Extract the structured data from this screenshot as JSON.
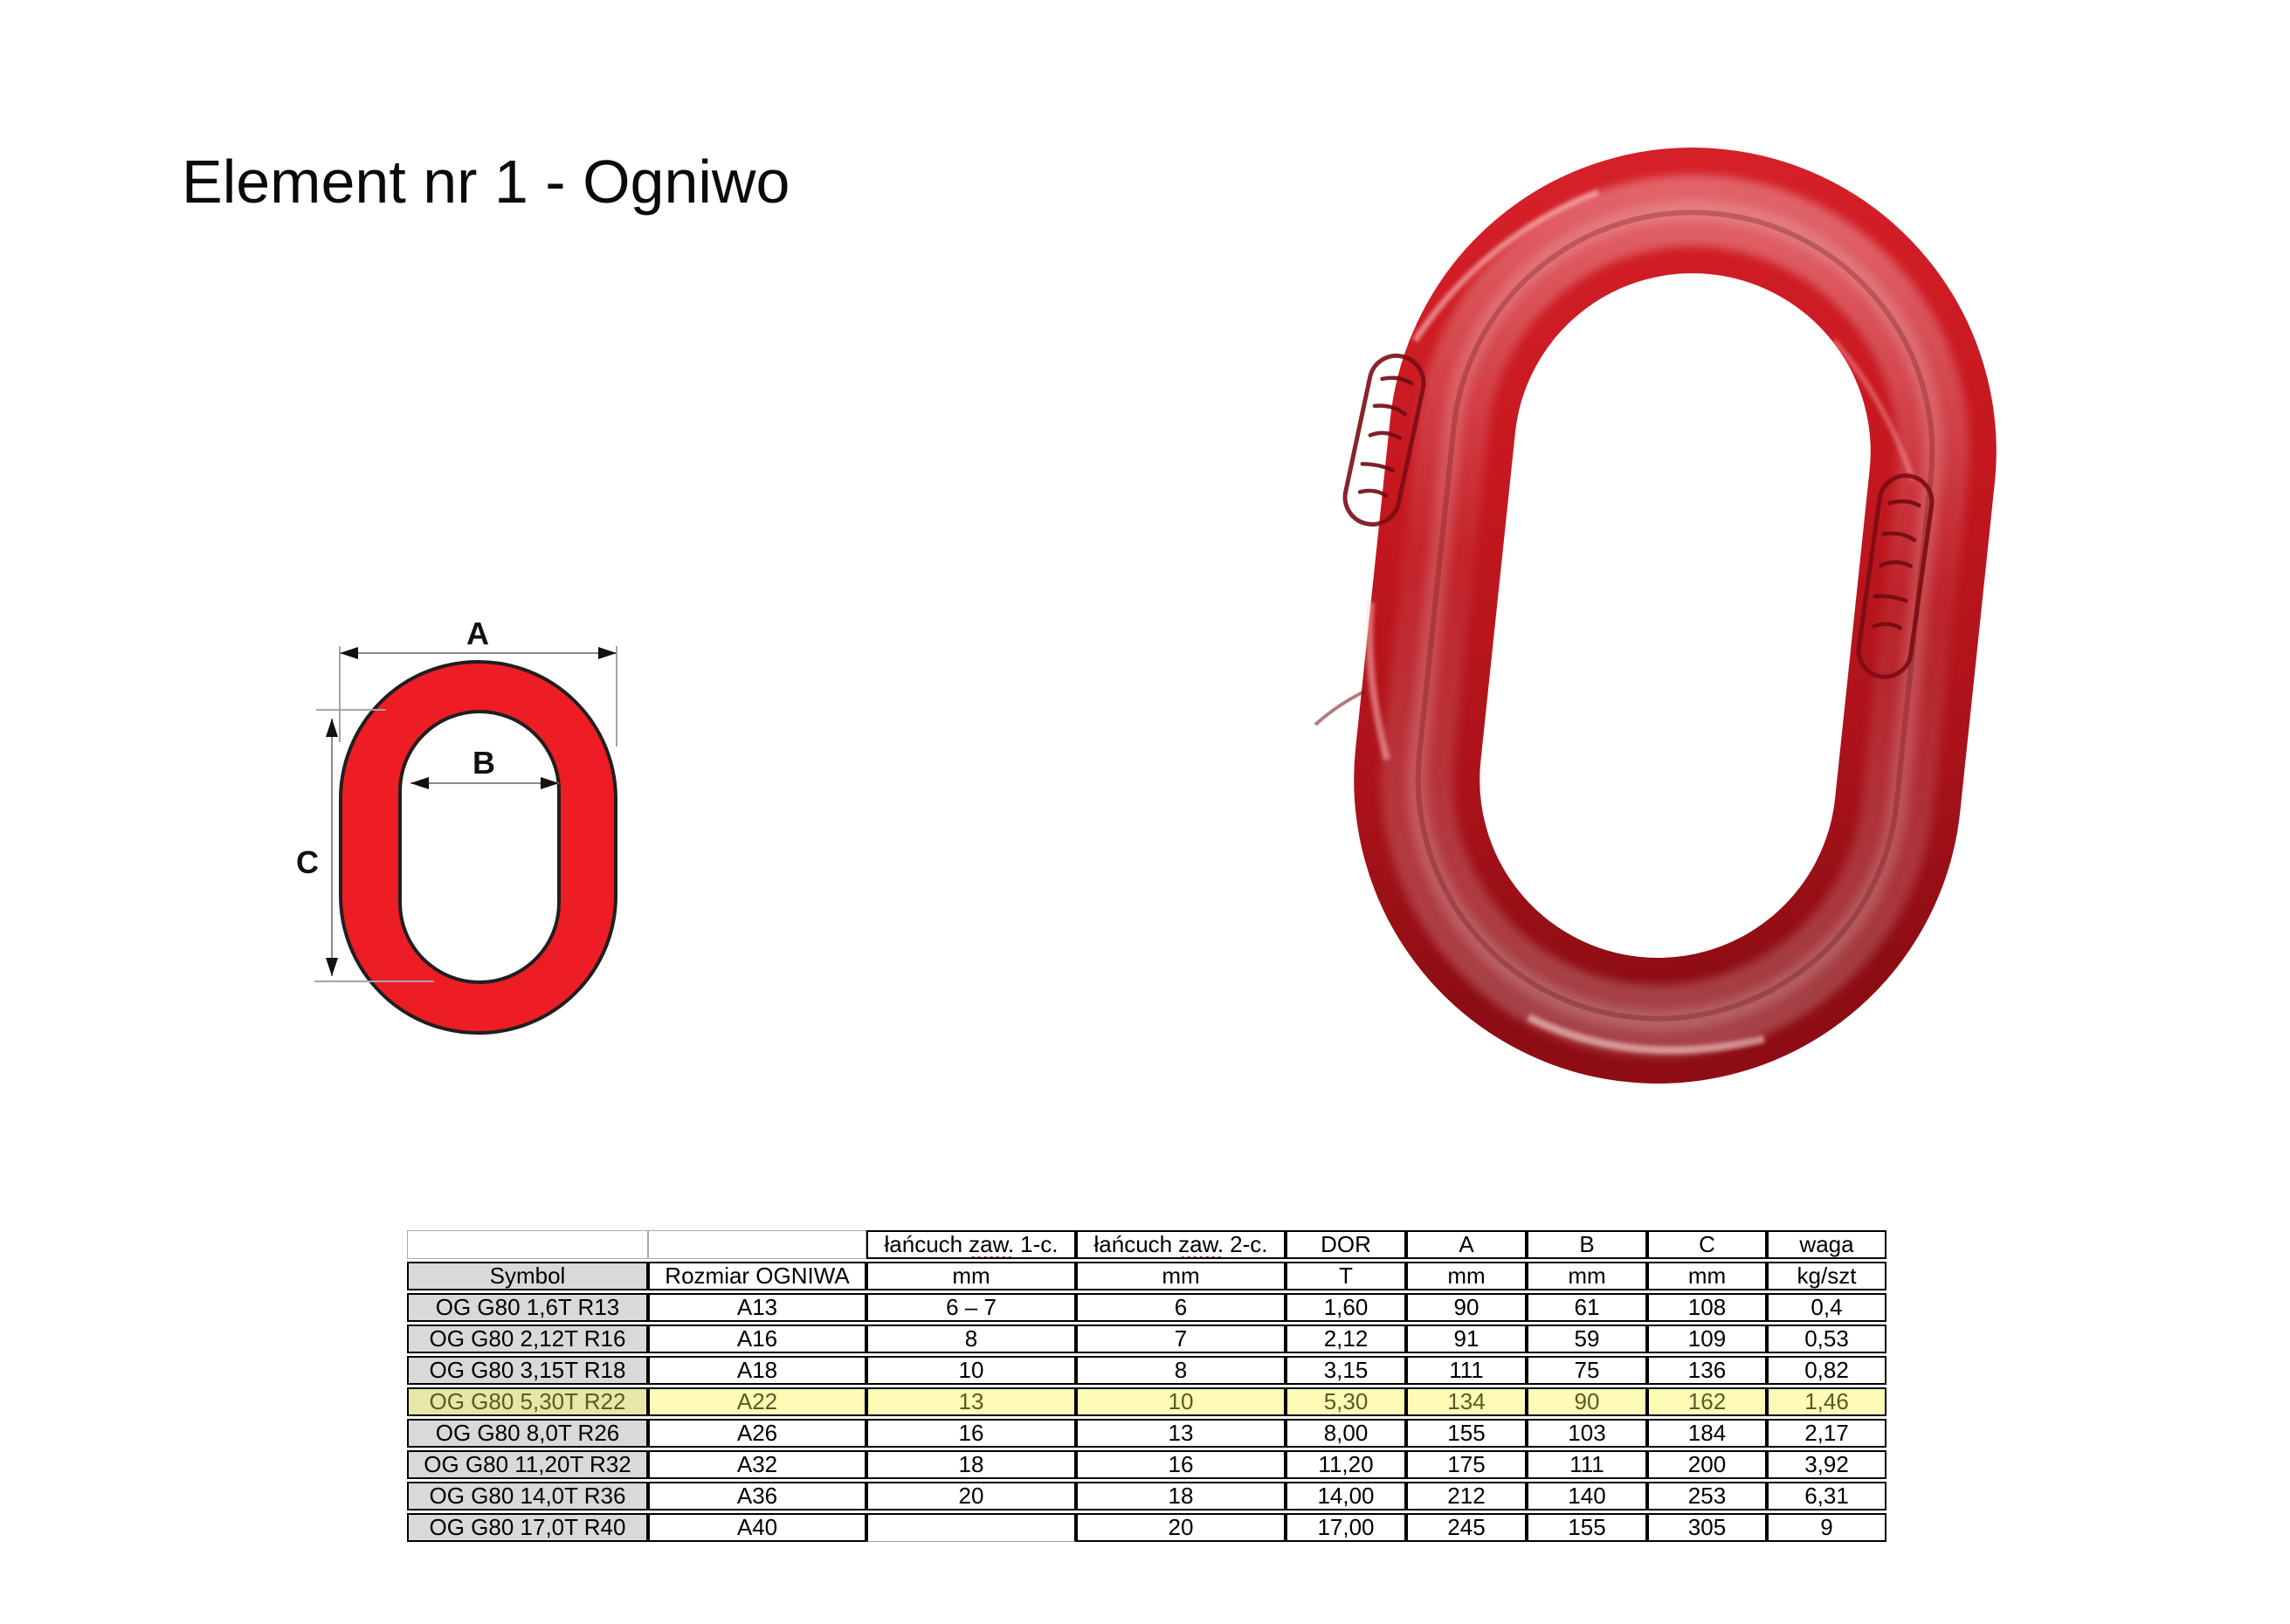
{
  "page": {
    "title": "Element nr 1 - Ogniwo"
  },
  "colors": {
    "diagram_red": "#ee1c24",
    "diagram_outline": "#1f1f1f",
    "photo_red": "#c4171f",
    "row_highlight": "#fdfbb6",
    "symbol_gray": "#d9d9d9",
    "squiggle_red": "#e00000"
  },
  "diagram": {
    "labels": {
      "a": "A",
      "b": "B",
      "c": "C"
    }
  },
  "photo": {
    "description": "glossy red forged oval master link with two embossed stamps and weld seam"
  },
  "table": {
    "header_chain1": {
      "word": "łańcuch",
      "abbr": "zaw.",
      "leg": "1-c."
    },
    "header_chain2": {
      "word": "łańcuch",
      "abbr": "zaw.",
      "leg": "2-c."
    },
    "header_row1": {
      "dor": "DOR",
      "a": "A",
      "b": "B",
      "c": "C",
      "waga": "waga"
    },
    "header_row2": [
      "Symbol",
      "Rozmiar OGNIWA",
      "mm",
      "mm",
      "T",
      "mm",
      "mm",
      "mm",
      "kg/szt"
    ],
    "rows": [
      {
        "cells": [
          "OG G80 1,6T R13",
          "A13",
          "6 – 7",
          "6",
          "1,60",
          "90",
          "61",
          "108",
          "0,4"
        ],
        "highlighted": false
      },
      {
        "cells": [
          "OG G80 2,12T R16",
          "A16",
          "8",
          "7",
          "2,12",
          "91",
          "59",
          "109",
          "0,53"
        ],
        "highlighted": false
      },
      {
        "cells": [
          "OG G80 3,15T R18",
          "A18",
          "10",
          "8",
          "3,15",
          "111",
          "75",
          "136",
          "0,82"
        ],
        "highlighted": false
      },
      {
        "cells": [
          "OG G80 5,30T R22",
          "A22",
          "13",
          "10",
          "5,30",
          "134",
          "90",
          "162",
          "1,46"
        ],
        "highlighted": true
      },
      {
        "cells": [
          "OG G80 8,0T R26",
          "A26",
          "16",
          "13",
          "8,00",
          "155",
          "103",
          "184",
          "2,17"
        ],
        "highlighted": false
      },
      {
        "cells": [
          "OG G80 11,20T R32",
          "A32",
          "18",
          "16",
          "11,20",
          "175",
          "111",
          "200",
          "3,92"
        ],
        "highlighted": false
      },
      {
        "cells": [
          "OG G80 14,0T R36",
          "A36",
          "20",
          "18",
          "14,00",
          "212",
          "140",
          "253",
          "6,31"
        ],
        "highlighted": false
      },
      {
        "cells": [
          "OG G80 17,0T R40",
          "A40",
          "",
          "20",
          "17,00",
          "245",
          "155",
          "305",
          "9"
        ],
        "highlighted": false,
        "muted_cols": [
          2
        ]
      }
    ]
  }
}
